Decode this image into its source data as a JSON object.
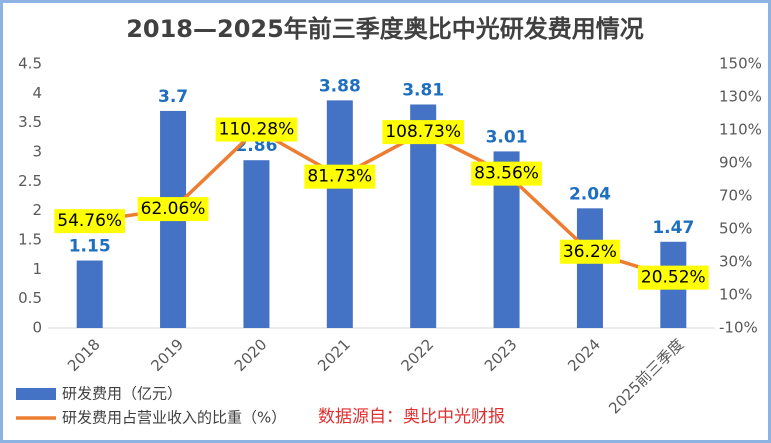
{
  "chart_data": {
    "type": "bar",
    "title": "2018—2025年前三季度奥比中光研发费用情况",
    "categories": [
      "2018",
      "2019",
      "2020",
      "2021",
      "2022",
      "2023",
      "2024",
      "2025前三季度"
    ],
    "series": [
      {
        "name": "研发费用（亿元）",
        "type": "bar",
        "color": "#4472c4",
        "values": [
          1.15,
          3.7,
          2.86,
          3.88,
          3.81,
          3.01,
          2.04,
          1.47
        ]
      },
      {
        "name": "研发费用占营业收入的比重（%）",
        "type": "line",
        "axis": "y2",
        "color": "#ed7d31",
        "values": [
          54.76,
          62.06,
          110.28,
          81.73,
          108.73,
          83.56,
          36.2,
          20.52
        ],
        "value_labels": [
          "54.76%",
          "62.06%",
          "110.28%",
          "81.73%",
          "108.73%",
          "83.56%",
          "36.2%",
          "20.52%"
        ]
      }
    ],
    "ylim": [
      0,
      4.5
    ],
    "yticks": [
      0,
      0.5,
      1,
      1.5,
      2,
      2.5,
      3,
      3.5,
      4,
      4.5
    ],
    "y2lim": [
      -10,
      150
    ],
    "y2ticks": [
      {
        "value": -10,
        "label": "-10%"
      },
      {
        "value": 10,
        "label": "10%"
      },
      {
        "value": 30,
        "label": "30%"
      },
      {
        "value": 50,
        "label": "50%"
      },
      {
        "value": 70,
        "label": "70%"
      },
      {
        "value": 90,
        "label": "90%"
      },
      {
        "value": 110,
        "label": "110%"
      },
      {
        "value": 130,
        "label": "130%"
      },
      {
        "value": 150,
        "label": "150%"
      }
    ],
    "legend": "bottom-left",
    "source": "数据源自：奥比中光财报"
  }
}
